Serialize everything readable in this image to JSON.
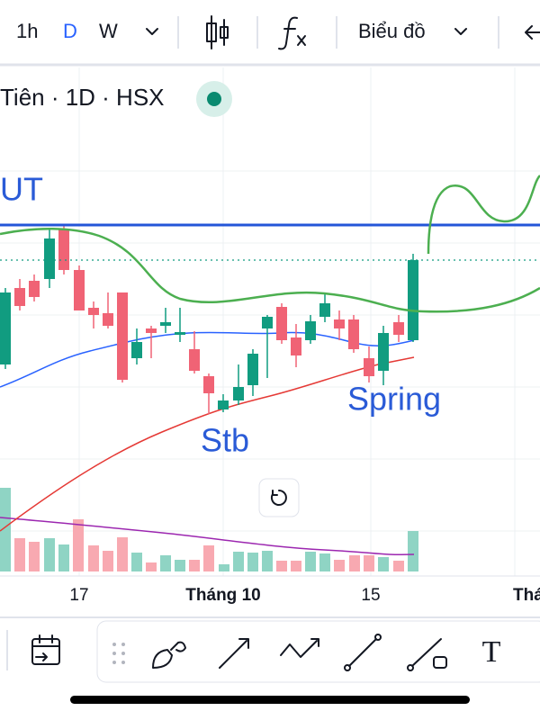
{
  "toolbar": {
    "intervals": [
      "1h",
      "D",
      "W"
    ],
    "chart_type": "Biểu đồ"
  },
  "symbol": "Tiên · 1D · HSX",
  "annotations": {
    "ut": "UT",
    "stb": "Stb",
    "spring": "Spring"
  },
  "x_axis": [
    "17",
    "Tháng 10",
    "15",
    "Thá"
  ],
  "drawing_tools": {
    "text_tool": "T"
  }
}
